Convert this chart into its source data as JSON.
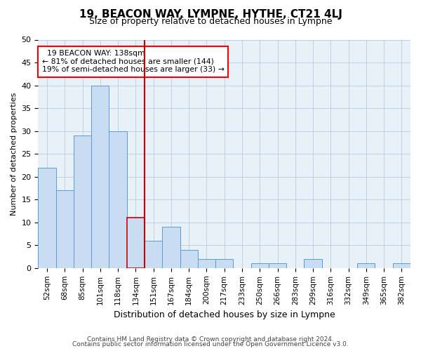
{
  "title_line1": "19, BEACON WAY, LYMPNE, HYTHE, CT21 4LJ",
  "title_line2": "Size of property relative to detached houses in Lympne",
  "xlabel": "Distribution of detached houses by size in Lympne",
  "ylabel": "Number of detached properties",
  "categories": [
    "52sqm",
    "68sqm",
    "85sqm",
    "101sqm",
    "118sqm",
    "134sqm",
    "151sqm",
    "167sqm",
    "184sqm",
    "200sqm",
    "217sqm",
    "233sqm",
    "250sqm",
    "266sqm",
    "283sqm",
    "299sqm",
    "316sqm",
    "332sqm",
    "349sqm",
    "365sqm",
    "382sqm"
  ],
  "values": [
    22,
    17,
    29,
    40,
    30,
    11,
    6,
    9,
    4,
    2,
    2,
    0,
    1,
    1,
    0,
    2,
    0,
    0,
    1,
    0,
    1
  ],
  "bar_color": "#c9ddf2",
  "bar_edge_color": "#5b9bd5",
  "highlight_bar_index": 5,
  "highlight_edge_color": "#cc0000",
  "vline_color": "#cc0000",
  "annotation_text_line1": "19 BEACON WAY: 138sqm",
  "annotation_text_line2": "← 81% of detached houses are smaller (144)",
  "annotation_text_line3": "19% of semi-detached houses are larger (33) →",
  "ylim": [
    0,
    50
  ],
  "yticks": [
    0,
    5,
    10,
    15,
    20,
    25,
    30,
    35,
    40,
    45,
    50
  ],
  "footer_line1": "Contains HM Land Registry data © Crown copyright and database right 2024.",
  "footer_line2": "Contains public sector information licensed under the Open Government Licence v3.0.",
  "bg_color": "#ffffff",
  "plot_bg_color": "#e8f0f8",
  "grid_color": "#b8cce4"
}
